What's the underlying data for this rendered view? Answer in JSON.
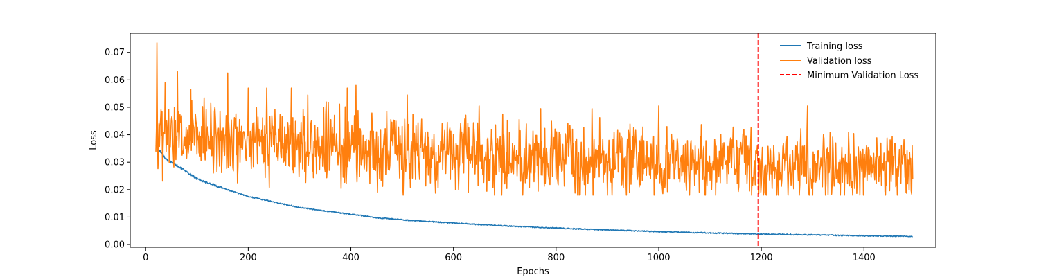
{
  "chart_data": {
    "type": "line",
    "title": "",
    "xlabel": "Epochs",
    "ylabel": "Loss",
    "xlim": [
      -30,
      1540
    ],
    "ylim": [
      -0.001,
      0.077
    ],
    "x_ticks": [
      0,
      200,
      400,
      600,
      800,
      1000,
      1200,
      1400
    ],
    "y_ticks": [
      0.0,
      0.01,
      0.02,
      0.03,
      0.04,
      0.05,
      0.06,
      0.07
    ],
    "y_tick_labels": [
      "0.00",
      "0.01",
      "0.02",
      "0.03",
      "0.04",
      "0.05",
      "0.06",
      "0.07"
    ],
    "x_tick_labels": [
      "0",
      "200",
      "400",
      "600",
      "800",
      "1000",
      "1200",
      "1400"
    ],
    "grid": false,
    "legend_position": "top-right",
    "series": [
      {
        "name": "Training loss",
        "color": "#1f77b4",
        "x_range": [
          20,
          1495
        ],
        "approx_points": [
          [
            20,
            0.036
          ],
          [
            40,
            0.031
          ],
          [
            60,
            0.029
          ],
          [
            80,
            0.0265
          ],
          [
            100,
            0.024
          ],
          [
            150,
            0.0205
          ],
          [
            200,
            0.0175
          ],
          [
            250,
            0.0155
          ],
          [
            300,
            0.0135
          ],
          [
            350,
            0.0122
          ],
          [
            400,
            0.011
          ],
          [
            450,
            0.0098
          ],
          [
            500,
            0.009
          ],
          [
            600,
            0.0078
          ],
          [
            700,
            0.0068
          ],
          [
            800,
            0.006
          ],
          [
            900,
            0.0053
          ],
          [
            1000,
            0.0047
          ],
          [
            1100,
            0.0042
          ],
          [
            1200,
            0.0038
          ],
          [
            1300,
            0.0035
          ],
          [
            1400,
            0.0032
          ],
          [
            1495,
            0.003
          ]
        ],
        "noise": 0.0004
      },
      {
        "name": "Validation loss",
        "color": "#ff7f0e",
        "x_range": [
          20,
          1495
        ],
        "approx_points": [
          [
            20,
            0.038
          ],
          [
            100,
            0.038
          ],
          [
            200,
            0.037
          ],
          [
            300,
            0.036
          ],
          [
            400,
            0.035
          ],
          [
            500,
            0.034
          ],
          [
            600,
            0.033
          ],
          [
            700,
            0.032
          ],
          [
            800,
            0.031
          ],
          [
            900,
            0.031
          ],
          [
            1000,
            0.03
          ],
          [
            1100,
            0.029
          ],
          [
            1200,
            0.029
          ],
          [
            1300,
            0.029
          ],
          [
            1400,
            0.028
          ],
          [
            1495,
            0.028
          ]
        ],
        "noise": 0.0065,
        "peaks": [
          [
            22,
            0.0735
          ],
          [
            38,
            0.059
          ],
          [
            62,
            0.063
          ],
          [
            88,
            0.0565
          ],
          [
            160,
            0.0625
          ],
          [
            200,
            0.057
          ],
          [
            236,
            0.057
          ],
          [
            284,
            0.057
          ],
          [
            316,
            0.0545
          ],
          [
            393,
            0.057
          ],
          [
            410,
            0.058
          ],
          [
            510,
            0.0545
          ],
          [
            650,
            0.0505
          ],
          [
            770,
            0.0495
          ],
          [
            870,
            0.0495
          ],
          [
            1000,
            0.0505
          ],
          [
            1290,
            0.0505
          ]
        ]
      }
    ],
    "vline": {
      "name": "Minimum Validation Loss",
      "x": 1194,
      "color": "#ff0000",
      "style": "dashed"
    }
  }
}
